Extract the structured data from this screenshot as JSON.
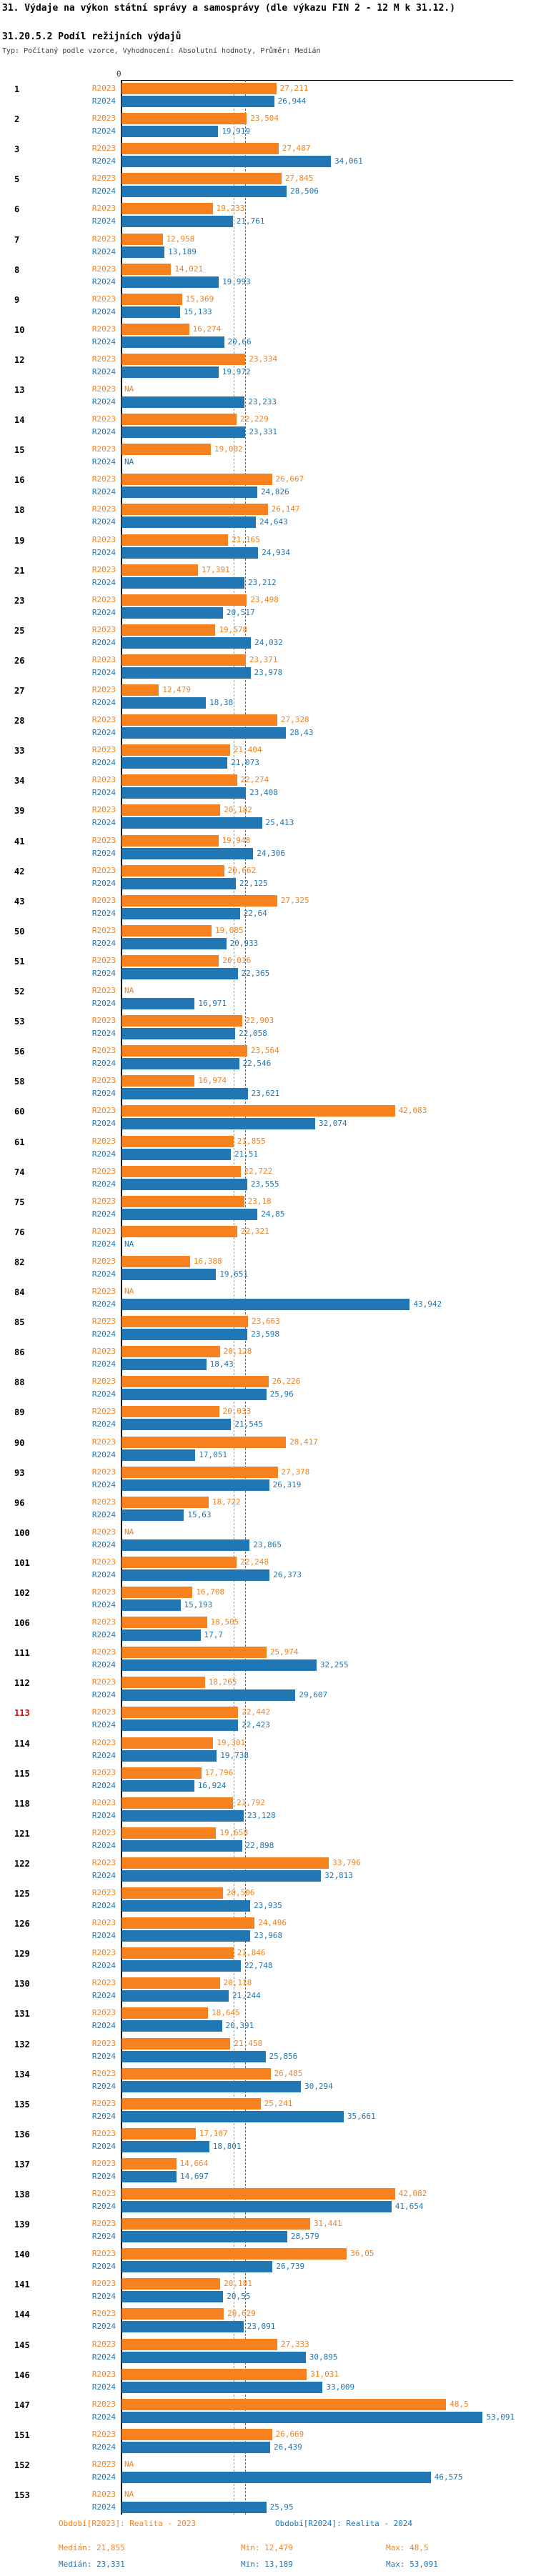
{
  "header": {
    "title": "31. Výdaje na výkon státní správy a samosprávy (dle výkazu FIN 2 - 12 M k 31.12.)",
    "subtitle": "31.20.5.2 Podíl režijních výdajů",
    "meta": "Typ: Počítaný podle vzorce, Vyhodnocení: Absolutní hodnoty, Průměr: Medián"
  },
  "colors": {
    "r2023": "#f5821e",
    "r2024": "#2177b4",
    "highlight_row": "#e60000",
    "axis": "#000000"
  },
  "legend": {
    "r2023": {
      "period": "Období[R2023]: Realita - 2023",
      "median": "Medián: 21,855",
      "min": "Min: 12,479",
      "max": "Max: 48,5"
    },
    "r2024": {
      "period": "Období[R2024]: Realita - 2024",
      "median": "Medián: 23,331",
      "min": "Min: 13,189",
      "max": "Max: 53,091"
    }
  },
  "chart_data": {
    "type": "bar",
    "orientation": "horizontal",
    "series_names": [
      "R2023",
      "R2024"
    ],
    "na_text": "NA",
    "x_axis": {
      "zero_label": "0",
      "grid": "median-lines-only"
    },
    "median_r2023": "21,855",
    "median_r2024": "23,331",
    "highlighted_category": "113",
    "rows": [
      {
        "id": "1",
        "r2023": "27,211",
        "r2024": "26,944"
      },
      {
        "id": "2",
        "r2023": "23,504",
        "r2024": "19,919"
      },
      {
        "id": "3",
        "r2023": "27,487",
        "r2024": "34,061"
      },
      {
        "id": "5",
        "r2023": "27,845",
        "r2024": "28,506"
      },
      {
        "id": "6",
        "r2023": "19,233",
        "r2024": "21,761"
      },
      {
        "id": "7",
        "r2023": "12,958",
        "r2024": "13,189"
      },
      {
        "id": "8",
        "r2023": "14,021",
        "r2024": "19,993"
      },
      {
        "id": "9",
        "r2023": "15,369",
        "r2024": "15,133"
      },
      {
        "id": "10",
        "r2023": "16,274",
        "r2024": "20,66"
      },
      {
        "id": "12",
        "r2023": "23,334",
        "r2024": "19,972"
      },
      {
        "id": "13",
        "r2023": null,
        "r2024": "23,233"
      },
      {
        "id": "14",
        "r2023": "22,229",
        "r2024": "23,331"
      },
      {
        "id": "15",
        "r2023": "19,002",
        "r2024": null
      },
      {
        "id": "16",
        "r2023": "26,667",
        "r2024": "24,826"
      },
      {
        "id": "18",
        "r2023": "26,147",
        "r2024": "24,643"
      },
      {
        "id": "19",
        "r2023": "21,165",
        "r2024": "24,934"
      },
      {
        "id": "21",
        "r2023": "17,391",
        "r2024": "23,212"
      },
      {
        "id": "23",
        "r2023": "23,498",
        "r2024": "20,517"
      },
      {
        "id": "25",
        "r2023": "19,578",
        "r2024": "24,032"
      },
      {
        "id": "26",
        "r2023": "23,371",
        "r2024": "23,978"
      },
      {
        "id": "27",
        "r2023": "12,479",
        "r2024": "18,38"
      },
      {
        "id": "28",
        "r2023": "27,328",
        "r2024": "28,43"
      },
      {
        "id": "33",
        "r2023": "21,404",
        "r2024": "21,073"
      },
      {
        "id": "34",
        "r2023": "22,274",
        "r2024": "23,408"
      },
      {
        "id": "39",
        "r2023": "20,182",
        "r2024": "25,413"
      },
      {
        "id": "41",
        "r2023": "19,948",
        "r2024": "24,306"
      },
      {
        "id": "42",
        "r2023": "20,662",
        "r2024": "22,125"
      },
      {
        "id": "43",
        "r2023": "27,325",
        "r2024": "22,64"
      },
      {
        "id": "50",
        "r2023": "19,085",
        "r2024": "20,933"
      },
      {
        "id": "51",
        "r2023": "20,016",
        "r2024": "22,365"
      },
      {
        "id": "52",
        "r2023": null,
        "r2024": "16,971"
      },
      {
        "id": "53",
        "r2023": "22,903",
        "r2024": "22,058"
      },
      {
        "id": "56",
        "r2023": "23,564",
        "r2024": "22,546"
      },
      {
        "id": "58",
        "r2023": "16,974",
        "r2024": "23,621"
      },
      {
        "id": "60",
        "r2023": "42,083",
        "r2024": "32,074"
      },
      {
        "id": "61",
        "r2023": "21,855",
        "r2024": "21,51"
      },
      {
        "id": "74",
        "r2023": "22,722",
        "r2024": "23,555"
      },
      {
        "id": "75",
        "r2023": "23,18",
        "r2024": "24,85"
      },
      {
        "id": "76",
        "r2023": "22,321",
        "r2024": null
      },
      {
        "id": "82",
        "r2023": "16,388",
        "r2024": "19,651"
      },
      {
        "id": "84",
        "r2023": null,
        "r2024": "43,942"
      },
      {
        "id": "85",
        "r2023": "23,663",
        "r2024": "23,598"
      },
      {
        "id": "86",
        "r2023": "20,128",
        "r2024": "18,43"
      },
      {
        "id": "88",
        "r2023": "26,226",
        "r2024": "25,96"
      },
      {
        "id": "89",
        "r2023": "20,033",
        "r2024": "21,545"
      },
      {
        "id": "90",
        "r2023": "28,417",
        "r2024": "17,051"
      },
      {
        "id": "93",
        "r2023": "27,378",
        "r2024": "26,319"
      },
      {
        "id": "96",
        "r2023": "18,722",
        "r2024": "15,63"
      },
      {
        "id": "100",
        "r2023": null,
        "r2024": "23,865"
      },
      {
        "id": "101",
        "r2023": "22,248",
        "r2024": "26,373"
      },
      {
        "id": "102",
        "r2023": "16,708",
        "r2024": "15,193"
      },
      {
        "id": "106",
        "r2023": "18,505",
        "r2024": "17,7"
      },
      {
        "id": "111",
        "r2023": "25,974",
        "r2024": "32,255"
      },
      {
        "id": "112",
        "r2023": "18,265",
        "r2024": "29,607"
      },
      {
        "id": "113",
        "r2023": "22,442",
        "r2024": "22,423",
        "highlight": true
      },
      {
        "id": "114",
        "r2023": "19,301",
        "r2024": "19,738"
      },
      {
        "id": "115",
        "r2023": "17,796",
        "r2024": "16,924"
      },
      {
        "id": "118",
        "r2023": "21,792",
        "r2024": "23,128"
      },
      {
        "id": "121",
        "r2023": "19,658",
        "r2024": "22,898"
      },
      {
        "id": "122",
        "r2023": "33,796",
        "r2024": "32,813"
      },
      {
        "id": "125",
        "r2023": "20,506",
        "r2024": "23,935"
      },
      {
        "id": "126",
        "r2023": "24,496",
        "r2024": "23,968"
      },
      {
        "id": "129",
        "r2023": "21,846",
        "r2024": "22,748"
      },
      {
        "id": "130",
        "r2023": "20,118",
        "r2024": "21,244"
      },
      {
        "id": "131",
        "r2023": "18,645",
        "r2024": "20,391"
      },
      {
        "id": "132",
        "r2023": "21,458",
        "r2024": "25,856"
      },
      {
        "id": "134",
        "r2023": "26,485",
        "r2024": "30,294"
      },
      {
        "id": "135",
        "r2023": "25,241",
        "r2024": "35,661"
      },
      {
        "id": "136",
        "r2023": "17,107",
        "r2024": "18,801"
      },
      {
        "id": "137",
        "r2023": "14,664",
        "r2024": "14,697"
      },
      {
        "id": "138",
        "r2023": "42,082",
        "r2024": "41,654"
      },
      {
        "id": "139",
        "r2023": "31,441",
        "r2024": "28,579"
      },
      {
        "id": "140",
        "r2023": "36,05",
        "r2024": "26,739"
      },
      {
        "id": "141",
        "r2023": "20,181",
        "r2024": "20,55"
      },
      {
        "id": "144",
        "r2023": "20,629",
        "r2024": "23,091"
      },
      {
        "id": "145",
        "r2023": "27,333",
        "r2024": "30,895"
      },
      {
        "id": "146",
        "r2023": "31,031",
        "r2024": "33,009"
      },
      {
        "id": "147",
        "r2023": "48,5",
        "r2024": "53,091"
      },
      {
        "id": "151",
        "r2023": "26,669",
        "r2024": "26,439"
      },
      {
        "id": "152",
        "r2023": null,
        "r2024": "46,575"
      },
      {
        "id": "153",
        "r2023": null,
        "r2024": "25,95"
      }
    ]
  }
}
